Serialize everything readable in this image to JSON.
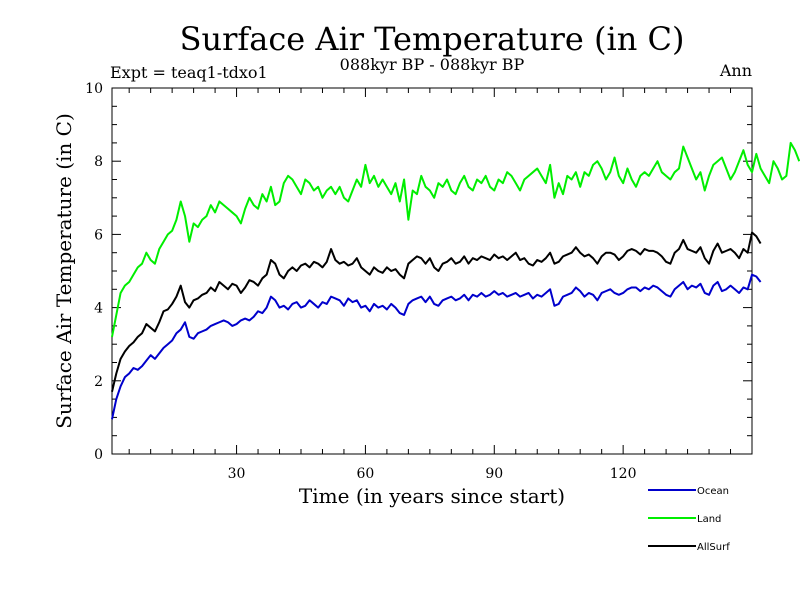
{
  "chart_data": {
    "type": "line",
    "title": "Surface Air Temperature (in C)",
    "subtitle": "088kyr BP - 088kyr BP",
    "experiment": "Expt = teaq1-tdxo1",
    "season": "Ann",
    "xlabel": "Time (in years since start)",
    "ylabel": "Surface Air Temperature (in C)",
    "xlim": [
      1,
      150
    ],
    "ylim": [
      0,
      10
    ],
    "xticks": [
      30,
      60,
      90,
      120
    ],
    "yticks": [
      0,
      2,
      4,
      6,
      8,
      10
    ],
    "legend_position": "bottom-right",
    "series": [
      {
        "name": "Ocean",
        "color": "#0000cc",
        "values": [
          0.95,
          1.5,
          1.85,
          2.1,
          2.2,
          2.35,
          2.3,
          2.4,
          2.55,
          2.7,
          2.6,
          2.75,
          2.9,
          3.0,
          3.1,
          3.3,
          3.4,
          3.6,
          3.2,
          3.15,
          3.3,
          3.35,
          3.4,
          3.5,
          3.55,
          3.6,
          3.65,
          3.6,
          3.5,
          3.55,
          3.65,
          3.7,
          3.65,
          3.75,
          3.9,
          3.85,
          4.0,
          4.3,
          4.2,
          4.0,
          4.05,
          3.95,
          4.1,
          4.15,
          4.0,
          4.05,
          4.2,
          4.1,
          4.0,
          4.15,
          4.1,
          4.3,
          4.25,
          4.2,
          4.05,
          4.25,
          4.15,
          4.2,
          4.0,
          4.05,
          3.9,
          4.1,
          4.0,
          4.05,
          3.95,
          4.1,
          4.0,
          3.85,
          3.8,
          4.1,
          4.2,
          4.25,
          4.3,
          4.15,
          4.3,
          4.1,
          4.05,
          4.2,
          4.25,
          4.3,
          4.2,
          4.25,
          4.35,
          4.2,
          4.35,
          4.3,
          4.4,
          4.3,
          4.35,
          4.45,
          4.35,
          4.4,
          4.3,
          4.35,
          4.4,
          4.3,
          4.35,
          4.4,
          4.25,
          4.35,
          4.3,
          4.4,
          4.5,
          4.05,
          4.1,
          4.3,
          4.35,
          4.4,
          4.55,
          4.45,
          4.3,
          4.4,
          4.35,
          4.2,
          4.4,
          4.45,
          4.5,
          4.4,
          4.35,
          4.4,
          4.5,
          4.55,
          4.55,
          4.45,
          4.55,
          4.5,
          4.6,
          4.55,
          4.45,
          4.35,
          4.3,
          4.5,
          4.6,
          4.7,
          4.5,
          4.6,
          4.55,
          4.65,
          4.4,
          4.35,
          4.6,
          4.7,
          4.45,
          4.5,
          4.6,
          4.5,
          4.4,
          4.55,
          4.5,
          4.9,
          4.85,
          4.7
        ]
      },
      {
        "name": "Land",
        "color": "#00ee00",
        "values": [
          3.2,
          3.8,
          4.4,
          4.6,
          4.7,
          4.9,
          5.1,
          5.2,
          5.5,
          5.3,
          5.2,
          5.6,
          5.8,
          6.0,
          6.1,
          6.4,
          6.9,
          6.5,
          5.8,
          6.3,
          6.2,
          6.4,
          6.5,
          6.8,
          6.6,
          6.9,
          6.8,
          6.7,
          6.6,
          6.5,
          6.3,
          6.7,
          7.0,
          6.8,
          6.7,
          7.1,
          6.9,
          7.3,
          6.8,
          6.9,
          7.4,
          7.6,
          7.5,
          7.3,
          7.1,
          7.5,
          7.4,
          7.2,
          7.3,
          7.0,
          7.2,
          7.3,
          7.1,
          7.3,
          7.0,
          6.9,
          7.2,
          7.5,
          7.3,
          7.9,
          7.4,
          7.6,
          7.3,
          7.5,
          7.3,
          7.1,
          7.4,
          6.9,
          7.5,
          6.4,
          7.2,
          7.1,
          7.6,
          7.3,
          7.2,
          7.0,
          7.4,
          7.3,
          7.5,
          7.2,
          7.1,
          7.4,
          7.6,
          7.3,
          7.2,
          7.5,
          7.4,
          7.6,
          7.3,
          7.2,
          7.5,
          7.4,
          7.7,
          7.6,
          7.4,
          7.2,
          7.5,
          7.6,
          7.7,
          7.8,
          7.6,
          7.4,
          7.9,
          7.0,
          7.4,
          7.1,
          7.6,
          7.5,
          7.7,
          7.3,
          7.7,
          7.6,
          7.9,
          8.0,
          7.8,
          7.5,
          7.7,
          8.1,
          7.6,
          7.4,
          7.8,
          7.5,
          7.3,
          7.6,
          7.7,
          7.6,
          7.8,
          8.0,
          7.7,
          7.6,
          7.5,
          7.7,
          7.8,
          8.4,
          8.1,
          7.8,
          7.5,
          7.7,
          7.2,
          7.6,
          7.9,
          8.0,
          8.1,
          7.8,
          7.5,
          7.7,
          8.0,
          8.3,
          7.9,
          7.7,
          8.2,
          7.8,
          7.6,
          7.4,
          8.0,
          7.8,
          7.5,
          7.6,
          8.5,
          8.3,
          8.0
        ]
      },
      {
        "name": "AllSurf",
        "color": "#000000",
        "values": [
          1.7,
          2.2,
          2.6,
          2.8,
          2.95,
          3.05,
          3.2,
          3.3,
          3.55,
          3.45,
          3.35,
          3.6,
          3.9,
          3.95,
          4.1,
          4.3,
          4.6,
          4.15,
          4.0,
          4.2,
          4.25,
          4.35,
          4.4,
          4.55,
          4.45,
          4.7,
          4.6,
          4.5,
          4.65,
          4.6,
          4.4,
          4.55,
          4.75,
          4.7,
          4.6,
          4.8,
          4.9,
          5.3,
          5.2,
          4.9,
          4.8,
          5.0,
          5.1,
          5.0,
          5.15,
          5.2,
          5.1,
          5.25,
          5.2,
          5.1,
          5.25,
          5.6,
          5.3,
          5.2,
          5.25,
          5.15,
          5.2,
          5.35,
          5.1,
          5.0,
          4.9,
          5.1,
          5.0,
          4.95,
          5.1,
          5.0,
          5.05,
          4.9,
          4.8,
          5.2,
          5.3,
          5.4,
          5.35,
          5.2,
          5.35,
          5.1,
          5.0,
          5.2,
          5.25,
          5.35,
          5.2,
          5.25,
          5.4,
          5.2,
          5.35,
          5.3,
          5.4,
          5.35,
          5.3,
          5.45,
          5.35,
          5.4,
          5.3,
          5.4,
          5.5,
          5.3,
          5.35,
          5.2,
          5.15,
          5.3,
          5.25,
          5.35,
          5.5,
          5.2,
          5.25,
          5.4,
          5.45,
          5.5,
          5.65,
          5.5,
          5.4,
          5.45,
          5.35,
          5.2,
          5.4,
          5.5,
          5.5,
          5.45,
          5.3,
          5.4,
          5.55,
          5.6,
          5.55,
          5.45,
          5.6,
          5.55,
          5.55,
          5.5,
          5.4,
          5.25,
          5.2,
          5.5,
          5.6,
          5.85,
          5.6,
          5.55,
          5.5,
          5.65,
          5.35,
          5.2,
          5.55,
          5.75,
          5.5,
          5.55,
          5.6,
          5.5,
          5.35,
          5.6,
          5.5,
          6.05,
          5.95,
          5.75
        ]
      }
    ]
  }
}
